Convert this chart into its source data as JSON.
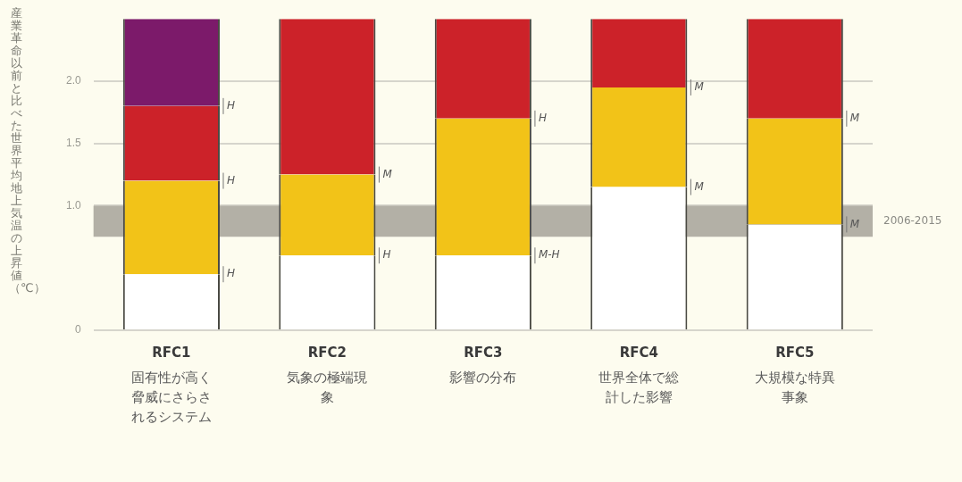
{
  "chart_data": {
    "type": "bar",
    "stacked": true,
    "ylabel": "産業革命以前と比べた世界平均地上気温の上昇値（℃）",
    "categories": [
      "RFC1\n固有性が高く脅威にさらされるシステム",
      "RFC2\n気象の極端現象",
      "RFC3\n影響の分布",
      "RFC4\n世界全体で総計した影響",
      "RFC5\n大規模な特異事象"
    ],
    "series": [
      {
        "color": "#ffffff",
        "values": [
          0.45,
          0.6,
          0.6,
          1.15,
          0.85
        ]
      },
      {
        "color": "#f2c318",
        "values": [
          0.75,
          0.65,
          1.1,
          0.8,
          0.85
        ]
      },
      {
        "color": "#cc2229",
        "values": [
          0.6,
          1.25,
          0.8,
          0.55,
          0.8
        ]
      },
      {
        "color": "#7c1a6a",
        "values": [
          0.7,
          0,
          0,
          0,
          0
        ]
      }
    ],
    "ylim": [
      0,
      2.5
    ],
    "yticks": [
      0,
      {
        "value": 1,
        "label": "1.0"
      },
      {
        "value": 1.5,
        "label": "1.5"
      },
      {
        "value": 2,
        "label": "2.0"
      }
    ],
    "grid": "y",
    "legend": false,
    "bands": [
      {
        "axis": "y",
        "from": 0.75,
        "to": 1.0,
        "label": "2006-2015",
        "color": "#b3b0a6"
      }
    ],
    "annotations": [
      "H",
      "H",
      "H",
      "H",
      "M",
      "M-H",
      "H",
      "M",
      "M",
      "M",
      "M"
    ]
  }
}
